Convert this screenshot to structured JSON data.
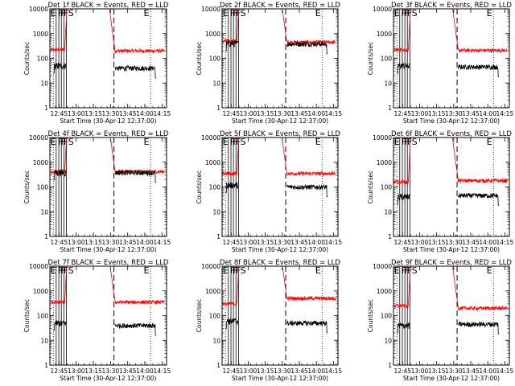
{
  "panel_titles": [
    "Det 1f BLACK = Events, RED = LLD",
    "Det 2f BLACK = Events, RED = LLD",
    "Det 3f BLACK = Events, RED = LLD",
    "Det 4f BLACK = Events, RED = LLD",
    "Det 5f BLACK = Events, RED = LLD",
    "Det 6f BLACK = Events, RED = LLD",
    "Det 7f BLACK = Events, RED = LLD",
    "Det 8f BLACK = Events, RED = LLD",
    "Det 9f BLACK = Events, RED = LLD"
  ],
  "chart_data": {
    "type": "line",
    "layout": "3x3 grid of panels",
    "ylabel": "Counts/sec",
    "xlabel": "Start Time (30-Apr-12 12:37:00)",
    "yscale": "log",
    "ylim": [
      1,
      10000
    ],
    "y_tick_labels": [
      "1",
      "10",
      "100",
      "1000",
      "10000"
    ],
    "x_range_minutes": [
      0,
      102
    ],
    "x_tick_labels": [
      "12:45",
      "13:00",
      "13:15",
      "13:30",
      "13:45",
      "14:00",
      "14:15"
    ],
    "x_tick_minutes": [
      8,
      23,
      38,
      53,
      68,
      83,
      98
    ],
    "legend": "none (described in titles)",
    "colors": {
      "events": "#000000",
      "lld": "#ff0000"
    },
    "flag_letters": [
      "E",
      "F",
      "F",
      "F",
      "S",
      "E"
    ],
    "panels": [
      {
        "title": "Det 1f BLACK = Events, RED = LLD",
        "events_level": 50,
        "lld_level": 220,
        "events_after": 40,
        "lld_after": 200
      },
      {
        "title": "Det 2f BLACK = Events, RED = LLD",
        "events_level": 400,
        "lld_level": 500,
        "events_after": 380,
        "lld_after": 450
      },
      {
        "title": "Det 3f BLACK = Events, RED = LLD",
        "events_level": 50,
        "lld_level": 220,
        "events_after": 45,
        "lld_after": 210
      },
      {
        "title": "Det 4f BLACK = Events, RED = LLD",
        "events_level": 380,
        "lld_level": 420,
        "events_after": 380,
        "lld_after": 420
      },
      {
        "title": "Det 5f BLACK = Events, RED = LLD",
        "events_level": 120,
        "lld_level": 350,
        "events_after": 100,
        "lld_after": 350
      },
      {
        "title": "Det 6f BLACK = Events, RED = LLD",
        "events_level": 40,
        "lld_level": 160,
        "events_after": 45,
        "lld_after": 180
      },
      {
        "title": "Det 7f BLACK = Events, RED = LLD",
        "events_level": 50,
        "lld_level": 350,
        "events_after": 40,
        "lld_after": 350
      },
      {
        "title": "Det 8f BLACK = Events, RED = LLD",
        "events_level": 60,
        "lld_level": 300,
        "events_after": 50,
        "lld_after": 500
      },
      {
        "title": "Det 9f BLACK = Events, RED = LLD",
        "events_level": 40,
        "lld_level": 250,
        "events_after": 45,
        "lld_after": 200
      }
    ]
  }
}
